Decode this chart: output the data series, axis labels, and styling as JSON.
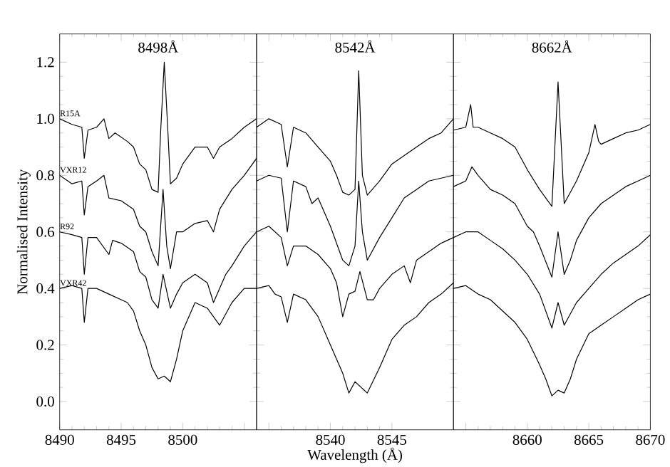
{
  "chart_data": [
    {
      "type": "line",
      "ylabel": "Normalised Intensity",
      "xlim": [
        8490,
        8506
      ],
      "ylim": [
        -0.1,
        1.3
      ],
      "xticks": [
        8490,
        8495,
        8500,
        {
          "value": 8505,
          "label": null
        }
      ],
      "yticks": [
        {
          "value": 0,
          "label": "0.0"
        },
        0.2,
        0.4,
        0.6,
        0.8,
        {
          "value": 1,
          "label": "1.0"
        },
        1.2
      ],
      "annotations": [
        "8498Å"
      ],
      "series": [
        {
          "name": "R15A",
          "color": "#000000",
          "x": [
            8490,
            8491,
            8491.8,
            8492,
            8492.3,
            8493,
            8493.6,
            8494,
            8494.5,
            8495.5,
            8496,
            8496.5,
            8497,
            8497.5,
            8498,
            8498.2,
            8498.5,
            8498.8,
            8499,
            8499.5,
            8500,
            8501,
            8502,
            8502.5,
            8503,
            8504,
            8505,
            8506
          ],
          "values": [
            1.0,
            0.98,
            0.97,
            0.86,
            0.96,
            0.97,
            1.0,
            0.93,
            0.95,
            0.92,
            0.9,
            0.84,
            0.82,
            0.75,
            0.74,
            0.95,
            1.2,
            0.95,
            0.77,
            0.79,
            0.84,
            0.9,
            0.9,
            0.86,
            0.9,
            0.93,
            0.97,
            1.0
          ]
        },
        {
          "name": "VXR12",
          "color": "#000000",
          "x": [
            8490,
            8491,
            8491.8,
            8492,
            8492.3,
            8493,
            8493.6,
            8494,
            8495,
            8496,
            8496.5,
            8497,
            8497.5,
            8498,
            8498.4,
            8498.7,
            8499,
            8499.5,
            8500,
            8501,
            8502,
            8502.5,
            8503,
            8504,
            8505,
            8506
          ],
          "values": [
            0.8,
            0.77,
            0.78,
            0.66,
            0.76,
            0.78,
            0.8,
            0.72,
            0.71,
            0.68,
            0.62,
            0.6,
            0.53,
            0.48,
            0.75,
            0.55,
            0.47,
            0.6,
            0.6,
            0.63,
            0.64,
            0.6,
            0.68,
            0.75,
            0.8,
            0.86
          ]
        },
        {
          "name": "R92",
          "color": "#000000",
          "x": [
            8490,
            8491,
            8491.8,
            8492,
            8492.3,
            8493,
            8494,
            8494.3,
            8495,
            8496,
            8496.5,
            8497,
            8497.5,
            8498,
            8498.4,
            8499,
            8499.5,
            8500,
            8501,
            8502,
            8502.5,
            8503.5,
            8504,
            8505,
            8506
          ],
          "values": [
            0.6,
            0.59,
            0.58,
            0.45,
            0.58,
            0.58,
            0.52,
            0.57,
            0.56,
            0.53,
            0.46,
            0.44,
            0.36,
            0.33,
            0.45,
            0.33,
            0.38,
            0.42,
            0.45,
            0.42,
            0.35,
            0.45,
            0.48,
            0.55,
            0.6
          ]
        },
        {
          "name": "VXR42",
          "color": "#000000",
          "x": [
            8490,
            8491,
            8491.8,
            8492,
            8492.3,
            8493,
            8494,
            8495,
            8495.5,
            8496,
            8496.5,
            8497,
            8497.5,
            8498,
            8498.5,
            8499,
            8499.5,
            8500,
            8501,
            8502,
            8502.5,
            8503,
            8504,
            8505,
            8506
          ],
          "values": [
            0.4,
            0.41,
            0.4,
            0.28,
            0.4,
            0.4,
            0.38,
            0.36,
            0.35,
            0.32,
            0.25,
            0.2,
            0.12,
            0.08,
            0.09,
            0.07,
            0.15,
            0.25,
            0.35,
            0.33,
            0.3,
            0.27,
            0.35,
            0.4,
            0.4
          ]
        }
      ]
    },
    {
      "type": "line",
      "xlabel": "Wavelength (Å)",
      "xlim": [
        8534,
        8550
      ],
      "ylim": [
        -0.1,
        1.3
      ],
      "tick_labels": "x",
      "xticks": [
        {
          "value": 8535,
          "label": null
        },
        8540,
        8545
      ],
      "yticks": [
        0,
        0.2,
        0.4,
        0.6,
        0.8,
        1,
        1.2
      ],
      "annotations": [
        "8542Å"
      ],
      "series": [
        {
          "color": "#000000",
          "x": [
            8534,
            8535,
            8536,
            8536.5,
            8537,
            8538,
            8539,
            8540,
            8540.5,
            8541,
            8541.5,
            8542,
            8542.3,
            8542.6,
            8543,
            8544,
            8545,
            8546,
            8547,
            8548,
            8549,
            8550
          ],
          "values": [
            0.97,
            1.0,
            0.98,
            0.83,
            0.97,
            0.95,
            0.9,
            0.85,
            0.8,
            0.74,
            0.73,
            0.75,
            1.17,
            0.8,
            0.73,
            0.78,
            0.84,
            0.87,
            0.9,
            0.93,
            0.95,
            1.0
          ]
        },
        {
          "color": "#000000",
          "x": [
            8534,
            8535,
            8536,
            8536.5,
            8537,
            8538,
            8538.5,
            8539,
            8540,
            8541,
            8541.5,
            8542,
            8542.3,
            8542.6,
            8543,
            8544,
            8545,
            8546,
            8547,
            8548,
            8549,
            8550
          ],
          "values": [
            0.78,
            0.8,
            0.79,
            0.6,
            0.78,
            0.76,
            0.7,
            0.72,
            0.62,
            0.5,
            0.48,
            0.55,
            0.78,
            0.6,
            0.5,
            0.58,
            0.65,
            0.72,
            0.75,
            0.78,
            0.79,
            0.8
          ]
        },
        {
          "color": "#000000",
          "x": [
            8534,
            8535,
            8536,
            8536.5,
            8537,
            8538,
            8539,
            8540,
            8540.5,
            8541,
            8541.5,
            8542,
            8542.4,
            8543,
            8543.5,
            8544,
            8545,
            8546,
            8546.5,
            8547,
            8548,
            8549,
            8550
          ],
          "values": [
            0.6,
            0.62,
            0.58,
            0.48,
            0.55,
            0.55,
            0.52,
            0.47,
            0.42,
            0.3,
            0.38,
            0.39,
            0.46,
            0.36,
            0.36,
            0.4,
            0.45,
            0.48,
            0.42,
            0.5,
            0.53,
            0.56,
            0.58
          ]
        },
        {
          "color": "#000000",
          "x": [
            8534,
            8535,
            8535.5,
            8536,
            8536.5,
            8537,
            8538,
            8539,
            8540,
            8540.5,
            8541,
            8541.5,
            8542,
            8542.5,
            8543,
            8544,
            8545,
            8546,
            8547,
            8548,
            8549,
            8550
          ],
          "values": [
            0.4,
            0.41,
            0.38,
            0.37,
            0.28,
            0.38,
            0.36,
            0.3,
            0.2,
            0.15,
            0.1,
            0.03,
            0.07,
            0.05,
            0.03,
            0.12,
            0.22,
            0.27,
            0.3,
            0.35,
            0.38,
            0.42
          ]
        }
      ]
    },
    {
      "type": "line",
      "xlim": [
        8654,
        8670
      ],
      "ylim": [
        -0.1,
        1.3
      ],
      "tick_labels": "x",
      "xticks": [
        {
          "value": 8655,
          "label": null
        },
        8660,
        8665,
        8670
      ],
      "yticks": [
        0,
        0.2,
        0.4,
        0.6,
        0.8,
        1,
        1.2
      ],
      "annotations": [
        "8662Å"
      ],
      "series": [
        {
          "color": "#000000",
          "x": [
            8654,
            8655,
            8655.4,
            8655.6,
            8656,
            8657,
            8658,
            8659,
            8660,
            8661,
            8661.5,
            8662,
            8662.5,
            8663,
            8664,
            8665,
            8665.5,
            8665.8,
            8666,
            8667,
            8668,
            8669,
            8670
          ],
          "values": [
            0.96,
            0.97,
            1.05,
            0.97,
            0.97,
            0.95,
            0.93,
            0.9,
            0.82,
            0.75,
            0.72,
            0.69,
            1.13,
            0.7,
            0.78,
            0.88,
            0.98,
            0.92,
            0.91,
            0.93,
            0.95,
            0.96,
            0.98
          ]
        },
        {
          "color": "#000000",
          "x": [
            8654,
            8655,
            8655.5,
            8656,
            8657,
            8658,
            8659,
            8660,
            8660.5,
            8661,
            8662,
            8662.5,
            8663,
            8663.5,
            8664,
            8665,
            8666,
            8667,
            8668,
            8669,
            8670
          ],
          "values": [
            0.76,
            0.78,
            0.83,
            0.8,
            0.75,
            0.73,
            0.7,
            0.62,
            0.6,
            0.55,
            0.44,
            0.6,
            0.45,
            0.5,
            0.57,
            0.65,
            0.7,
            0.73,
            0.76,
            0.78,
            0.8
          ]
        },
        {
          "color": "#000000",
          "x": [
            8654,
            8655,
            8656,
            8657,
            8658,
            8659,
            8660,
            8661,
            8662,
            8662.5,
            8663,
            8664,
            8665,
            8666,
            8667,
            8668,
            8669,
            8670
          ],
          "values": [
            0.58,
            0.6,
            0.6,
            0.57,
            0.54,
            0.5,
            0.45,
            0.38,
            0.26,
            0.35,
            0.27,
            0.35,
            0.4,
            0.45,
            0.49,
            0.52,
            0.55,
            0.59
          ]
        },
        {
          "color": "#000000",
          "x": [
            8654,
            8655,
            8656,
            8657,
            8658,
            8659,
            8660,
            8661,
            8661.5,
            8662,
            8662.5,
            8663,
            8663.5,
            8664,
            8665,
            8666,
            8667,
            8668,
            8669,
            8670
          ],
          "values": [
            0.4,
            0.41,
            0.38,
            0.36,
            0.32,
            0.28,
            0.22,
            0.13,
            0.08,
            0.02,
            0.04,
            0.03,
            0.08,
            0.15,
            0.24,
            0.27,
            0.3,
            0.33,
            0.36,
            0.38
          ]
        }
      ]
    }
  ]
}
